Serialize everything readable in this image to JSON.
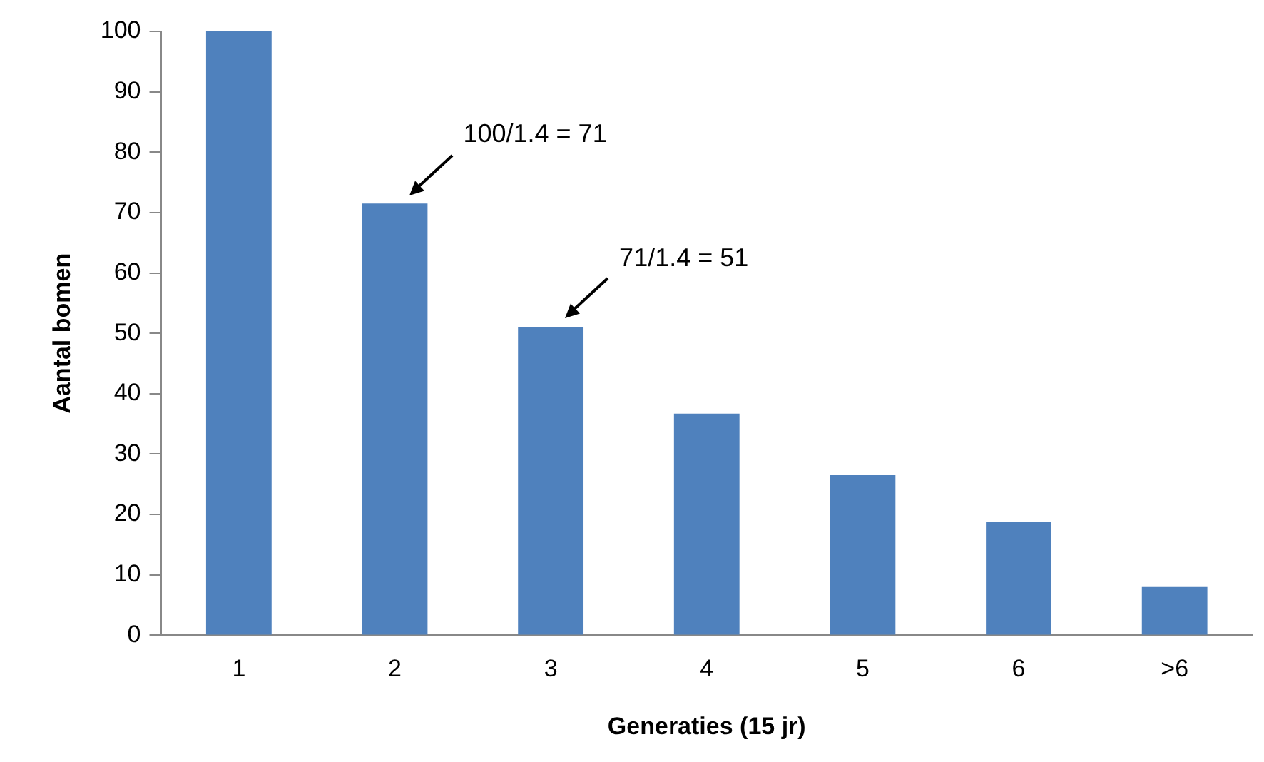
{
  "chart_data": {
    "type": "bar",
    "xlabel": "Generaties (15 jr)",
    "ylabel": "Aantal bomen",
    "categories": [
      "1",
      "2",
      "3",
      "4",
      "5",
      "6",
      ">6"
    ],
    "values": [
      100,
      71.5,
      51,
      36.7,
      26.5,
      18.7,
      8
    ],
    "color": "#4f81bd",
    "ylim": [
      0,
      100
    ],
    "yticks": [
      0,
      10,
      20,
      30,
      40,
      50,
      60,
      70,
      80,
      90,
      100
    ],
    "grid": false,
    "legend": false,
    "annotations": [
      "100/1.4 = 71",
      "71/1.4 = 51"
    ]
  }
}
